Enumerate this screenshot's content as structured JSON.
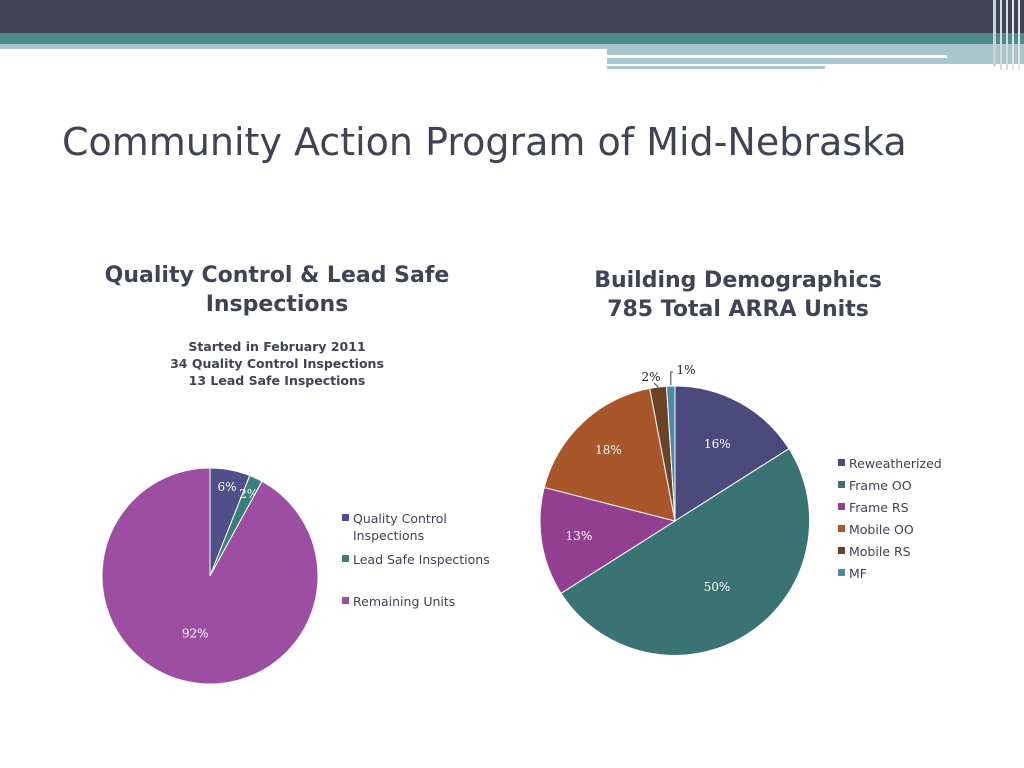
{
  "slide": {
    "title": "Community Action Program of Mid-Nebraska"
  },
  "theme": {
    "header_dark": "#424356",
    "header_teal": "#4e8a8a",
    "header_light": "#a8c6cb",
    "text": "#3f4354"
  },
  "chart_data": [
    {
      "type": "pie",
      "title": "Quality Control & Lead Safe Inspections",
      "title_lines": [
        "Quality Control & Lead Safe",
        "Inspections"
      ],
      "subtitle_lines": [
        "Started in February 2011",
        "34 Quality Control Inspections",
        "13 Lead Safe Inspections"
      ],
      "categories": [
        "Quality Control Inspections",
        "Lead Safe Inspections",
        "Remaining Units"
      ],
      "values": [
        6,
        2,
        92
      ],
      "labels": [
        "6%",
        "2%",
        "92%"
      ],
      "colors": [
        "#4f5089",
        "#3a7f7b",
        "#9c4ea3"
      ],
      "legend_position": "right"
    },
    {
      "type": "pie",
      "title": "Building Demographics",
      "title_lines": [
        "Building Demographics",
        "785 Total ARRA Units"
      ],
      "categories": [
        "Reweatherized",
        "Frame OO",
        "Frame RS",
        "Mobile OO",
        "Mobile RS",
        "MF"
      ],
      "values": [
        16,
        50,
        13,
        18,
        2,
        1
      ],
      "labels": [
        "16%",
        "50%",
        "13%",
        "18%",
        "2%",
        "1%"
      ],
      "colors": [
        "#4c4a7c",
        "#3a7374",
        "#923f91",
        "#a9562a",
        "#6b4226",
        "#4d8aa8"
      ],
      "legend_position": "right"
    }
  ]
}
